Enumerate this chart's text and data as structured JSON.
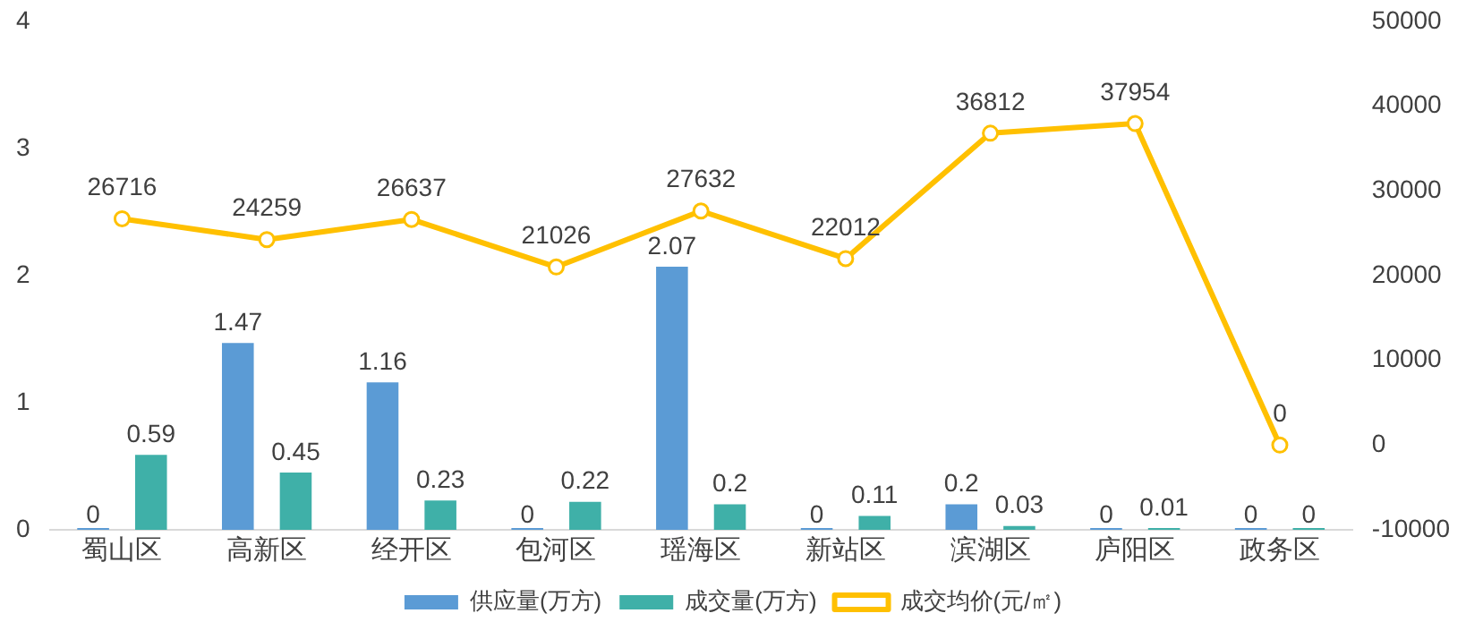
{
  "chart_data": {
    "type": "bar",
    "categories": [
      "蜀山区",
      "高新区",
      "经开区",
      "包河区",
      "瑶海区",
      "新站区",
      "滨湖区",
      "庐阳区",
      "政务区"
    ],
    "series": [
      {
        "name": "供应量(万方)",
        "color": "#5b9bd5",
        "values": [
          0,
          1.47,
          1.16,
          0,
          2.07,
          0,
          0.2,
          0,
          0
        ]
      },
      {
        "name": "成交量(万方)",
        "color": "#3fb0a8",
        "values": [
          0.59,
          0.45,
          0.23,
          0.22,
          0.2,
          0.11,
          0.03,
          0.01,
          0
        ]
      },
      {
        "name": "成交均价(元/㎡)",
        "type": "line",
        "axis": "y2",
        "color": "#ffc000",
        "values": [
          26716,
          24259,
          26637,
          21026,
          27632,
          22012,
          36812,
          37954,
          0
        ]
      }
    ],
    "ylim": [
      0,
      4
    ],
    "yticks": [
      0,
      1,
      2,
      3,
      4
    ],
    "y2lim": [
      -10000,
      50000
    ],
    "y2ticks": [
      -10000,
      0,
      10000,
      20000,
      30000,
      40000,
      50000
    ],
    "grid": false,
    "legend": "bottom",
    "marker": "circle",
    "data_labels": true
  }
}
